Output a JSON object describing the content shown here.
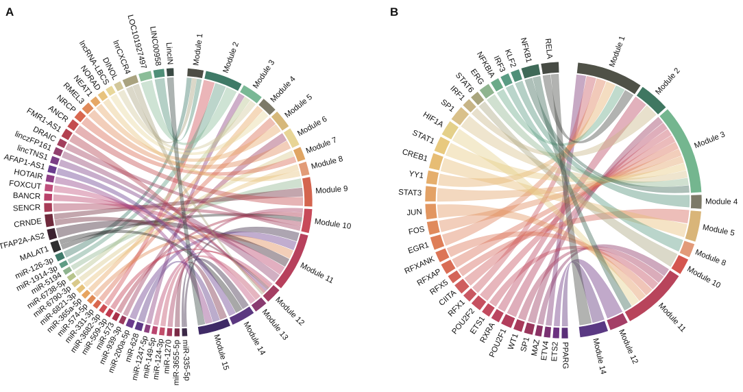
{
  "figure": {
    "panels": [
      {
        "letter": "A",
        "sources": [
          {
            "name": "miR-335-5p",
            "color": "#3b2846"
          },
          {
            "name": "miR-3655-5p",
            "color": "#7a2a45"
          },
          {
            "name": "miR-1270",
            "color": "#a63a5c"
          },
          {
            "name": "miR-124-3p",
            "color": "#c24e6a"
          },
          {
            "name": "miR-149-5p",
            "color": "#b9446e"
          },
          {
            "name": "miR-1247-5p",
            "color": "#8a3f7e"
          },
          {
            "name": "miR-628",
            "color": "#5e3a86"
          },
          {
            "name": "miR-200a-5p",
            "color": "#6b3b8c"
          },
          {
            "name": "miR-939-3p",
            "color": "#9b3a5e"
          },
          {
            "name": "miR-573",
            "color": "#a9324a"
          },
          {
            "name": "miR-509-3p",
            "color": "#c03a4e"
          },
          {
            "name": "miR-3682-3p",
            "color": "#cf4f55"
          },
          {
            "name": "miR-331-3p",
            "color": "#d9684f"
          },
          {
            "name": "miR-574-5p",
            "color": "#e08a55"
          },
          {
            "name": "miR-365a-5p",
            "color": "#e7a45f"
          },
          {
            "name": "miR-6821-3p",
            "color": "#e6c27a"
          },
          {
            "name": "miR-6790-3p",
            "color": "#d9c98a"
          },
          {
            "name": "miR-6738-5p",
            "color": "#b7c48c"
          },
          {
            "name": "miR-5194",
            "color": "#8fb48f"
          },
          {
            "name": "miR-1914-3p",
            "color": "#5f9c84"
          },
          {
            "name": "miR-126-3p",
            "color": "#3f7a6a"
          },
          {
            "name": "MALAT1",
            "color": "#2f2f30"
          },
          {
            "name": "TFAP2A-AS2",
            "color": "#3b2230"
          },
          {
            "name": "CRNDE",
            "color": "#6f2a3c"
          },
          {
            "name": "SENCR",
            "color": "#a83c57"
          },
          {
            "name": "BANCR",
            "color": "#b9416a"
          },
          {
            "name": "FOXCUT",
            "color": "#c0507c"
          },
          {
            "name": "HOTAIR",
            "color": "#8f3f86"
          },
          {
            "name": "AFAP1-AS1",
            "color": "#6a3d8f"
          },
          {
            "name": "lincTNS1",
            "color": "#7b3f86"
          },
          {
            "name": "linczFP161",
            "color": "#92406e"
          },
          {
            "name": "DRAIC",
            "color": "#a23f5d"
          },
          {
            "name": "FMR1-AS1",
            "color": "#b3404f"
          },
          {
            "name": "ANCR",
            "color": "#c44c4f"
          },
          {
            "name": "NRCP",
            "color": "#d9674f"
          },
          {
            "name": "RMEL3",
            "color": "#e08a5a"
          },
          {
            "name": "NEAT1",
            "color": "#e6a867"
          },
          {
            "name": "NORAD",
            "color": "#e8c37e"
          },
          {
            "name": "lncRNA-LBCS",
            "color": "#e8d79a"
          },
          {
            "name": "DINOL",
            "color": "#d2c79a"
          },
          {
            "name": "lnrCXCR4",
            "color": "#a9a27f"
          },
          {
            "name": "LOC101927497",
            "color": "#8bbd98"
          },
          {
            "name": "LINC00958",
            "color": "#4f8f78"
          },
          {
            "name": "LincIN",
            "color": "#3a4a44"
          }
        ],
        "modules": [
          {
            "name": "Module 1",
            "color": "#4d4d45"
          },
          {
            "name": "Module 2",
            "color": "#3f7a67"
          },
          {
            "name": "Module 3",
            "color": "#79b895"
          },
          {
            "name": "Module 4",
            "color": "#7d7a68"
          },
          {
            "name": "Module 5",
            "color": "#d6b87a"
          },
          {
            "name": "Module 6",
            "color": "#e8d596"
          },
          {
            "name": "Module 7",
            "color": "#e0a563"
          },
          {
            "name": "Module 8",
            "color": "#e29c78"
          },
          {
            "name": "Module 9",
            "color": "#d4654f"
          },
          {
            "name": "Module 10",
            "color": "#c84a5a"
          },
          {
            "name": "Module 11",
            "color": "#b7405c"
          },
          {
            "name": "Module 12",
            "color": "#a43e62"
          },
          {
            "name": "Module 13",
            "color": "#8a3b70"
          },
          {
            "name": "Module 14",
            "color": "#5b3880"
          },
          {
            "name": "Module 15",
            "color": "#3f2a66"
          }
        ]
      },
      {
        "letter": "B",
        "sources": [
          {
            "name": "PPARG",
            "color": "#5a2f78"
          },
          {
            "name": "ETS2",
            "color": "#6b3180"
          },
          {
            "name": "ETV4",
            "color": "#7a3172"
          },
          {
            "name": "MAZ",
            "color": "#8a3264"
          },
          {
            "name": "SP1",
            "color": "#99365c"
          },
          {
            "name": "WT1",
            "color": "#a83a5a"
          },
          {
            "name": "POU2F1",
            "color": "#b23e5c"
          },
          {
            "name": "RXRA",
            "color": "#bb4660"
          },
          {
            "name": "ETS1",
            "color": "#c24a5e"
          },
          {
            "name": "POU2F2",
            "color": "#c65060"
          },
          {
            "name": "RFX1",
            "color": "#c95862"
          },
          {
            "name": "CIITA",
            "color": "#cf5e5e"
          },
          {
            "name": "RFX5",
            "color": "#d46458"
          },
          {
            "name": "RFXAP",
            "color": "#d96d55"
          },
          {
            "name": "RFXANK",
            "color": "#dc7556"
          },
          {
            "name": "EGR1",
            "color": "#de7e58"
          },
          {
            "name": "FOS",
            "color": "#e08a5c"
          },
          {
            "name": "JUN",
            "color": "#e29660"
          },
          {
            "name": "STAT3",
            "color": "#e3a266"
          },
          {
            "name": "YY1",
            "color": "#e5ae6c"
          },
          {
            "name": "CREB1",
            "color": "#e7bd74"
          },
          {
            "name": "STAT1",
            "color": "#e8c97e"
          },
          {
            "name": "HIF1A",
            "color": "#e4d08a"
          },
          {
            "name": "SP1",
            "color": "#d9c08a"
          },
          {
            "name": "IRF1",
            "color": "#c7b486"
          },
          {
            "name": "STAT6",
            "color": "#a9a57e"
          },
          {
            "name": "ERG",
            "color": "#8fb48f"
          },
          {
            "name": "NFKBIA",
            "color": "#6aaa88"
          },
          {
            "name": "IRF3",
            "color": "#5a9c84"
          },
          {
            "name": "KLF2",
            "color": "#4f8f78"
          },
          {
            "name": "NFKB1",
            "color": "#3f6a58"
          },
          {
            "name": "RELA",
            "color": "#474b44"
          }
        ],
        "modules": [
          {
            "name": "Module 1",
            "color": "#4f5147"
          },
          {
            "name": "Module 2",
            "color": "#3f7761"
          },
          {
            "name": "Module 3",
            "color": "#74b68f"
          },
          {
            "name": "Module 4",
            "color": "#7d7a68"
          },
          {
            "name": "Module 5",
            "color": "#d9b579"
          },
          {
            "name": "Module 8",
            "color": "#e29a79"
          },
          {
            "name": "Module 10",
            "color": "#d4564f"
          },
          {
            "name": "Module 11",
            "color": "#b8445b"
          },
          {
            "name": "Module 12",
            "color": "#a43e66"
          },
          {
            "name": "Module 14",
            "color": "#5a3983"
          }
        ]
      }
    ]
  }
}
